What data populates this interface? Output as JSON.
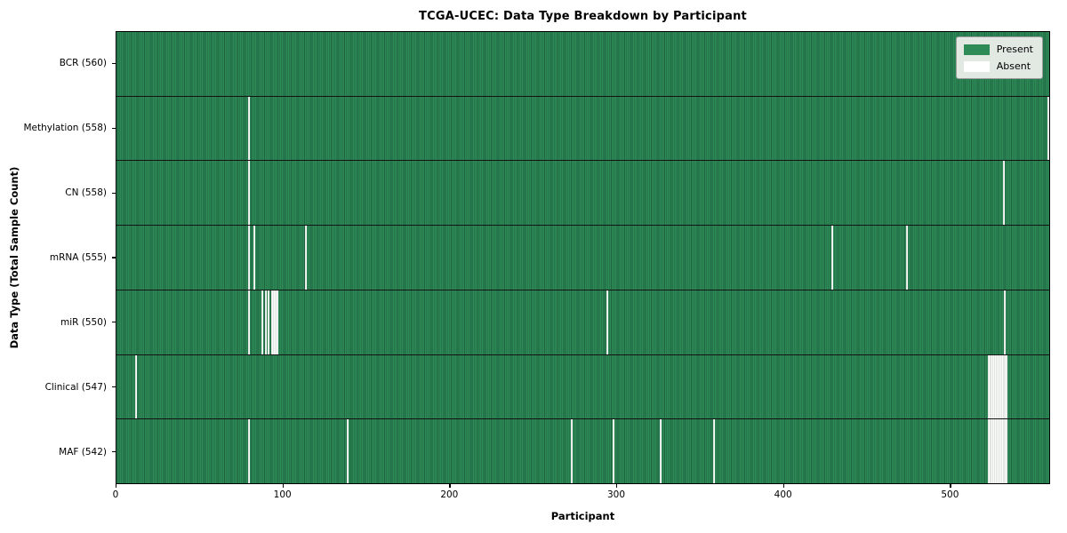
{
  "title": "TCGA-UCEC: Data Type Breakdown by Participant",
  "xlabel": "Participant",
  "ylabel": "Data Type (Total Sample Count)",
  "legend": {
    "present_label": "Present",
    "absent_label": "Absent"
  },
  "colors": {
    "present": "#2e8b57",
    "present_dark_stripe": "#1f6240",
    "absent": "#ffffff",
    "row_divider": "#141414",
    "plot_border": "#000000",
    "legend_bg": "#e2e9e3",
    "legend_border": "#9c9c9c"
  },
  "chart_data": {
    "type": "heatmap",
    "title": "TCGA-UCEC: Data Type Breakdown by Participant",
    "xlabel": "Participant",
    "ylabel": "Data Type (Total Sample Count)",
    "n_participants": 560,
    "x_ticks": [
      0,
      100,
      200,
      300,
      400,
      500
    ],
    "legend_entries": [
      "Present",
      "Absent"
    ],
    "legend_position": "upper right",
    "rows": [
      {
        "name": "BCR",
        "label": "BCR (560)",
        "total_sample_count": 560,
        "absent_participants": []
      },
      {
        "name": "Methylation",
        "label": "Methylation (558)",
        "total_sample_count": 558,
        "absent_participants": [
          79,
          559
        ]
      },
      {
        "name": "CN",
        "label": "CN (558)",
        "total_sample_count": 558,
        "absent_participants": [
          79,
          532
        ]
      },
      {
        "name": "mRNA",
        "label": "mRNA (555)",
        "total_sample_count": 555,
        "absent_participants": [
          79,
          82,
          113,
          429,
          474
        ]
      },
      {
        "name": "miR",
        "label": "miR (550)",
        "total_sample_count": 550,
        "absent_participants": [
          79,
          87,
          89,
          91,
          93,
          94,
          95,
          96,
          294,
          533
        ]
      },
      {
        "name": "Clinical",
        "label": "Clinical (547)",
        "total_sample_count": 547,
        "absent_participants": [
          11,
          523,
          524,
          525,
          526,
          527,
          528,
          529,
          530,
          531,
          532,
          533,
          534
        ]
      },
      {
        "name": "MAF",
        "label": "MAF (542)",
        "total_sample_count": 542,
        "absent_participants": [
          79,
          138,
          273,
          298,
          326,
          358,
          523,
          524,
          525,
          526,
          527,
          528,
          529,
          530,
          531,
          532,
          533,
          534
        ]
      }
    ]
  }
}
